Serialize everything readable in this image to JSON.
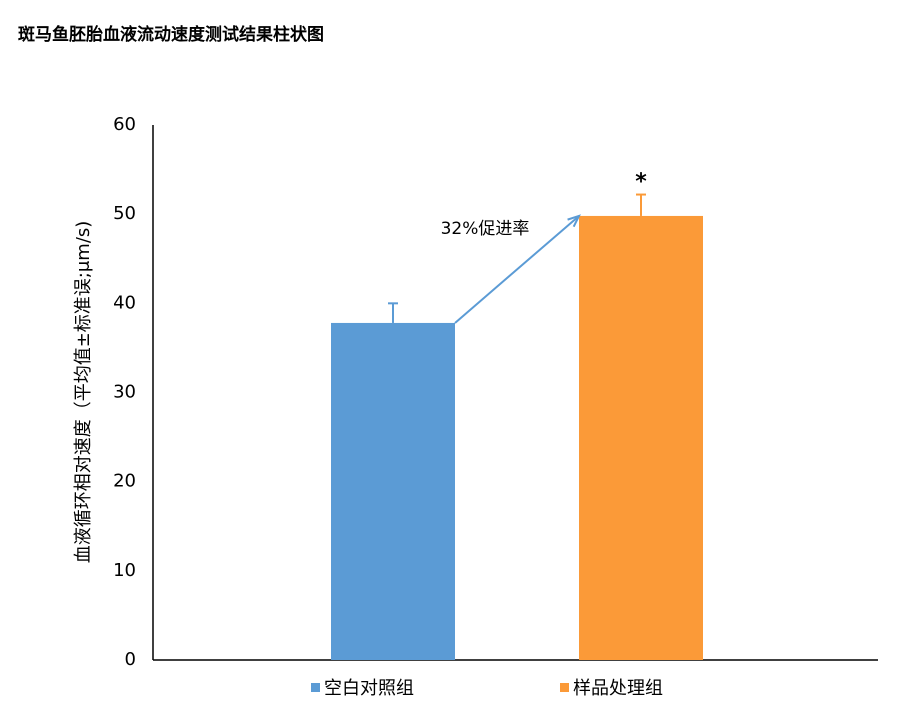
{
  "chart_data": {
    "type": "bar",
    "title": "斑马鱼胚胎血液流动速度测试结果柱状图",
    "y_label": "血液循环相对速度（平均值±标准误;μm/s)",
    "series": [
      {
        "name": "空白对照组",
        "color": "#5b9bd5",
        "values": [
          37.8
        ],
        "errors": [
          2.2
        ]
      },
      {
        "name": "样品处理组",
        "color": "#fb9a38",
        "values": [
          49.8
        ],
        "errors": [
          2.4
        ]
      }
    ],
    "annotations": [
      {
        "text": "32%促进率"
      },
      {
        "text": "*"
      }
    ],
    "ylim": [
      0,
      60
    ],
    "yticks": [
      0,
      10,
      20,
      30,
      40,
      50,
      60
    ],
    "grid": false
  }
}
